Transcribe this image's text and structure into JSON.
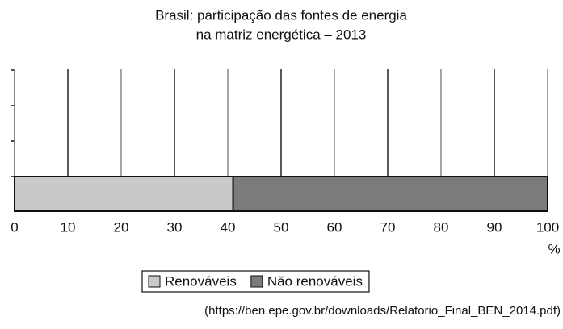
{
  "chart_data": {
    "type": "bar",
    "orientation": "horizontal",
    "stacked": true,
    "title": [
      "Brasil: participação das fontes de energia",
      "na matriz energética – 2013"
    ],
    "x_label": "%",
    "series": [
      {
        "name": "Renováveis",
        "color": "#c9c9c9",
        "values": [
          41
        ]
      },
      {
        "name": "Não renováveis",
        "color": "#7b7b7b",
        "values": [
          59
        ]
      }
    ],
    "xlim": [
      0,
      100
    ],
    "xticks": [
      0,
      10,
      20,
      30,
      40,
      50,
      60,
      70,
      80,
      90,
      100
    ],
    "grid": true,
    "legend": "bottom",
    "source": "(https://ben.epe.gov.br/downloads/Relatorio_Final_BEN_2014.pdf)"
  }
}
